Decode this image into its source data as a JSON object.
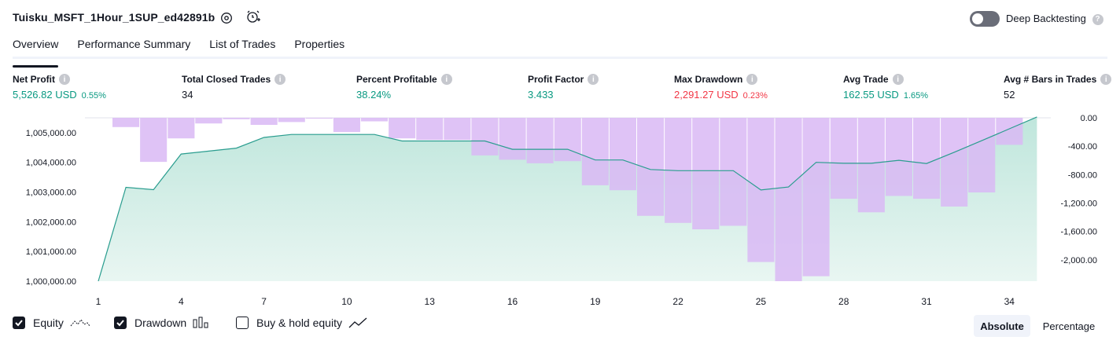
{
  "header": {
    "strategy_name": "Tuisku_MSFT_1Hour_1SUP_ed42891b",
    "settings_icon": "gear-icon",
    "alert_icon": "alarm-clock-plus-icon",
    "deep_backtesting_label": "Deep Backtesting",
    "deep_backtesting_enabled": false
  },
  "tabs": [
    {
      "label": "Overview",
      "active": true
    },
    {
      "label": "Performance Summary",
      "active": false
    },
    {
      "label": "List of Trades",
      "active": false
    },
    {
      "label": "Properties",
      "active": false
    }
  ],
  "metrics": [
    {
      "label": "Net Profit",
      "value": "5,526.82 USD",
      "pct": "0.55%",
      "color": "green"
    },
    {
      "label": "Total Closed Trades",
      "value": "34",
      "pct": "",
      "color": "dark"
    },
    {
      "label": "Percent Profitable",
      "value": "38.24%",
      "pct": "",
      "color": "green"
    },
    {
      "label": "Profit Factor",
      "value": "3.433",
      "pct": "",
      "color": "green"
    },
    {
      "label": "Max Drawdown",
      "value": "2,291.27 USD",
      "pct": "0.23%",
      "color": "red"
    },
    {
      "label": "Avg Trade",
      "value": "162.55 USD",
      "pct": "1.65%",
      "color": "green"
    },
    {
      "label": "Avg # Bars in Trades",
      "value": "52",
      "pct": "",
      "color": "dark"
    }
  ],
  "chart_data": {
    "type": "line",
    "x_ticks": [
      "1",
      "4",
      "7",
      "10",
      "13",
      "16",
      "19",
      "22",
      "25",
      "28",
      "31",
      "34"
    ],
    "y_left_ticks": [
      "1,000,000.00",
      "1,001,000.00",
      "1,002,000.00",
      "1,003,000.00",
      "1,004,000.00",
      "1,005,000.00"
    ],
    "y_right_ticks": [
      "0.00",
      "-400.00",
      "-800.00",
      "-1,200.00",
      "-1,600.00",
      "-2,000.00"
    ],
    "y_left_range": [
      1000000,
      1005500
    ],
    "y_right_range": [
      -2300,
      0
    ],
    "series": [
      {
        "name": "Equity",
        "kind": "area",
        "color": "#2a9d8f",
        "x": [
          1,
          2,
          3,
          4,
          5,
          6,
          7,
          8,
          9,
          10,
          11,
          12,
          13,
          14,
          15,
          16,
          17,
          18,
          19,
          20,
          21,
          22,
          23,
          24,
          25,
          26,
          27,
          28,
          29,
          30,
          31,
          32,
          33,
          34,
          35
        ],
        "values": [
          1000000,
          1003160,
          1003080,
          1004280,
          1004380,
          1004480,
          1004840,
          1004940,
          1004940,
          1004940,
          1004940,
          1004720,
          1004720,
          1004720,
          1004720,
          1004440,
          1004440,
          1004440,
          1004080,
          1004080,
          1003760,
          1003720,
          1003720,
          1003720,
          1003070,
          1003170,
          1004000,
          1003970,
          1003970,
          1004070,
          1003960,
          1004340,
          1004730,
          1005130,
          1005530
        ]
      },
      {
        "name": "Drawdown",
        "kind": "bar",
        "color": "#d9b8f5",
        "x": [
          1,
          2,
          3,
          4,
          5,
          6,
          7,
          8,
          9,
          10,
          11,
          12,
          13,
          14,
          15,
          16,
          17,
          18,
          19,
          20,
          21,
          22,
          23,
          24,
          25,
          26,
          27,
          28,
          29,
          30,
          31,
          32,
          33,
          34,
          35
        ],
        "values": [
          0,
          -130,
          -620,
          -290,
          -80,
          -20,
          -100,
          -60,
          -10,
          -200,
          -50,
          -290,
          -310,
          -310,
          -530,
          -590,
          -640,
          -610,
          -950,
          -1020,
          -1380,
          -1480,
          -1570,
          -1520,
          -2030,
          -2300,
          -2230,
          -1140,
          -1330,
          -1100,
          -1140,
          -1250,
          -1050,
          -380,
          0
        ]
      }
    ]
  },
  "legend": [
    {
      "label": "Equity",
      "checked": true,
      "icon": "equity-line-icon"
    },
    {
      "label": "Drawdown",
      "checked": true,
      "icon": "drawdown-bars-icon"
    },
    {
      "label": "Buy & hold equity",
      "checked": false,
      "icon": "buy-hold-line-icon"
    }
  ],
  "scale_toggle": {
    "options": [
      "Absolute",
      "Percentage"
    ],
    "selected": "Absolute"
  }
}
